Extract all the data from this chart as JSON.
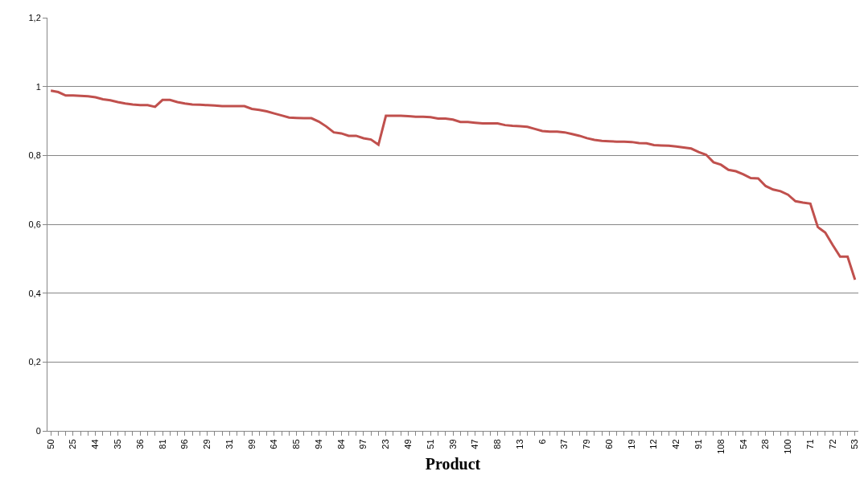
{
  "chart_data": {
    "type": "line",
    "xlabel": "Product",
    "categories": [
      "50",
      null,
      null,
      "25",
      null,
      null,
      "44",
      null,
      null,
      "35",
      null,
      null,
      "36",
      null,
      null,
      "81",
      null,
      null,
      "96",
      null,
      null,
      "29",
      null,
      null,
      "31",
      null,
      null,
      "99",
      null,
      null,
      "64",
      null,
      null,
      "85",
      null,
      null,
      "94",
      null,
      null,
      "84",
      null,
      null,
      "97",
      null,
      null,
      "23",
      null,
      null,
      "49",
      null,
      null,
      "51",
      null,
      null,
      "39",
      null,
      null,
      "47",
      null,
      null,
      "88",
      null,
      null,
      "13",
      null,
      null,
      "6",
      null,
      null,
      "37",
      null,
      null,
      "79",
      null,
      null,
      "60",
      null,
      null,
      "19",
      null,
      null,
      "12",
      null,
      null,
      "42",
      null,
      null,
      "91",
      null,
      null,
      "108",
      null,
      null,
      "54",
      null,
      null,
      "28",
      null,
      null,
      "100",
      null,
      null,
      "71",
      null,
      null,
      "72",
      null,
      null,
      "53"
    ],
    "series": [
      {
        "color": "#c0504d",
        "values": [
          0.988,
          0.984,
          0.974,
          0.974,
          0.973,
          0.972,
          0.969,
          0.963,
          0.96,
          0.955,
          0.951,
          0.948,
          0.946,
          0.946,
          0.941,
          0.961,
          0.961,
          0.955,
          0.951,
          0.948,
          0.947,
          0.946,
          0.945,
          0.943,
          0.943,
          0.943,
          0.943,
          0.935,
          0.932,
          0.928,
          0.922,
          0.916,
          0.91,
          0.909,
          0.908,
          0.908,
          0.898,
          0.884,
          0.867,
          0.864,
          0.857,
          0.857,
          0.85,
          0.846,
          0.831,
          0.915,
          0.915,
          0.915,
          0.914,
          0.912,
          0.912,
          0.911,
          0.907,
          0.907,
          0.904,
          0.897,
          0.897,
          0.895,
          0.893,
          0.893,
          0.893,
          0.888,
          0.886,
          0.885,
          0.883,
          0.877,
          0.871,
          0.869,
          0.869,
          0.867,
          0.862,
          0.857,
          0.85,
          0.845,
          0.842,
          0.841,
          0.84,
          0.84,
          0.839,
          0.836,
          0.835,
          0.83,
          0.829,
          0.828,
          0.826,
          0.823,
          0.82,
          0.81,
          0.802,
          0.78,
          0.773,
          0.758,
          0.754,
          0.745,
          0.734,
          0.733,
          0.711,
          0.701,
          0.696,
          0.686,
          0.667,
          0.663,
          0.66,
          0.592,
          0.576,
          0.54,
          0.506,
          0.506,
          0.439
        ]
      }
    ],
    "ylim": [
      0,
      1.2
    ],
    "yticks": [
      0,
      {
        "value": 0.2,
        "label": "0,2"
      },
      {
        "value": 0.4,
        "label": "0,4"
      },
      {
        "value": 0.6,
        "label": "0,6"
      },
      {
        "value": 0.8,
        "label": "0,8"
      },
      1,
      {
        "value": 1.2,
        "label": "1,2"
      }
    ],
    "grid": "y",
    "marker": "none",
    "line_style": "solid"
  }
}
